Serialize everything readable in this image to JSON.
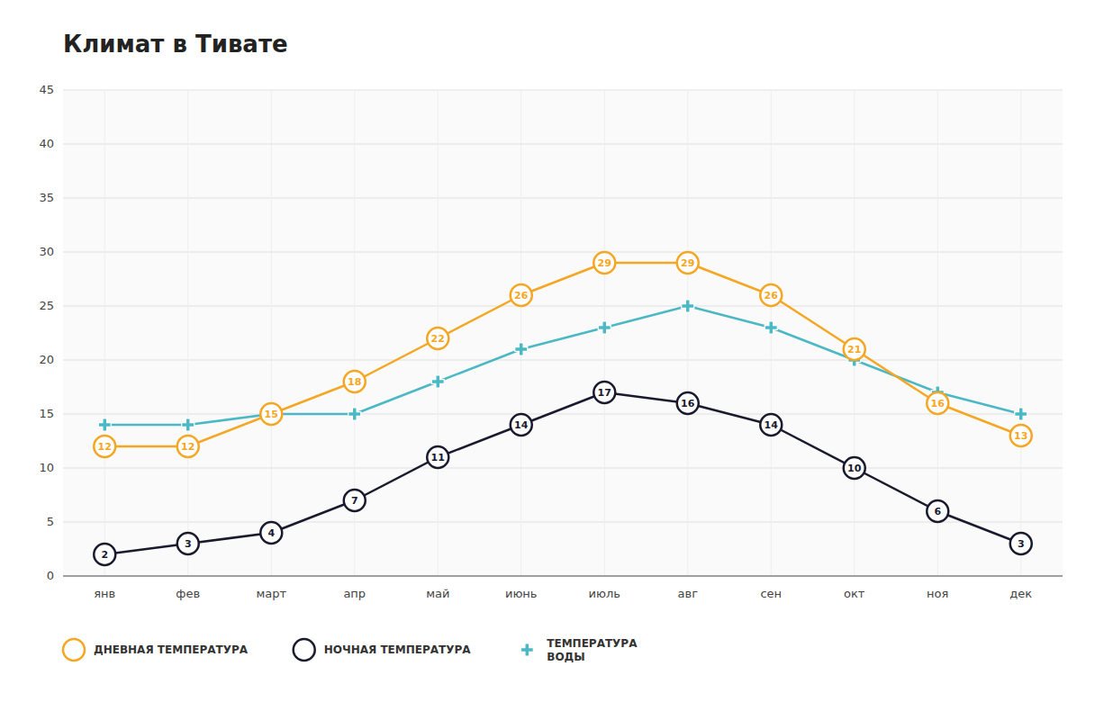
{
  "chart_data": {
    "type": "line",
    "title": "Климат в Тивате",
    "categories": [
      "янв",
      "фев",
      "март",
      "апр",
      "май",
      "июнь",
      "июль",
      "авг",
      "сен",
      "окт",
      "ноя",
      "дек"
    ],
    "series": [
      {
        "name": "ДНЕВНАЯ ТЕМПЕРАТУРА",
        "color": "#F5A623",
        "marker": "circle",
        "data_labels": true,
        "values": [
          12,
          12,
          15,
          18,
          22,
          26,
          29,
          29,
          26,
          21,
          16,
          13
        ]
      },
      {
        "name": "НОЧНАЯ ТЕМПЕРАТУРА",
        "color": "#1A1A2E",
        "marker": "circle",
        "data_labels": true,
        "values": [
          2,
          3,
          4,
          7,
          11,
          14,
          17,
          16,
          14,
          10,
          6,
          3
        ]
      },
      {
        "name": "ТЕМПЕРАТУРА\nВОДЫ",
        "color": "#4BB8C5",
        "marker": "plus",
        "data_labels": false,
        "values": [
          14,
          14,
          15,
          15,
          18,
          21,
          23,
          25,
          23,
          20,
          17,
          15
        ]
      }
    ],
    "ylim": [
      0,
      45
    ],
    "yticks": [
      0,
      5,
      10,
      15,
      20,
      25,
      30,
      35,
      40,
      45
    ],
    "grid": true,
    "legend": "bottom"
  }
}
